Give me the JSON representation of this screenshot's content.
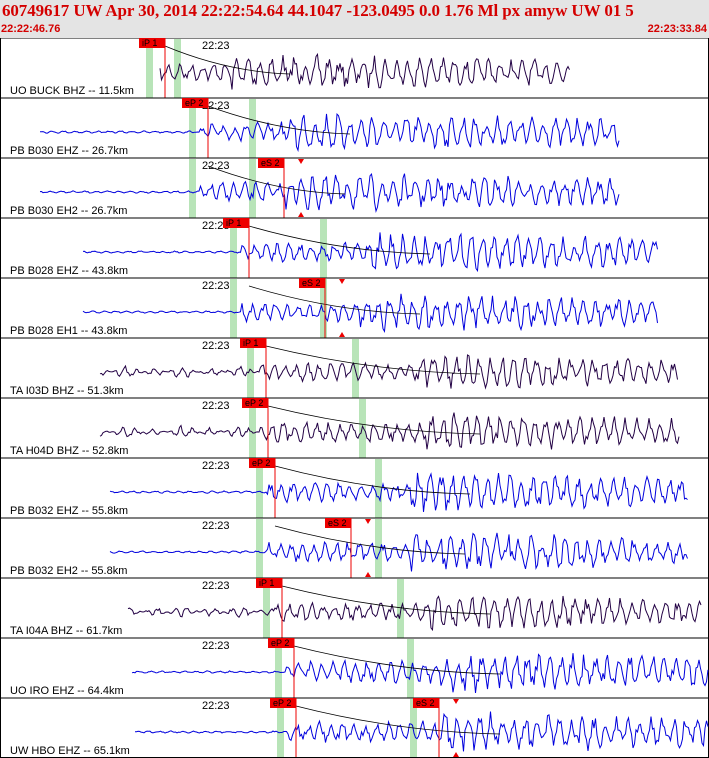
{
  "header": {
    "title": "60749617 UW Apr 30, 2014 22:22:54.64   44.1047 -123.0495  0.0 1.76 Ml px amyw UW 01   5",
    "start_time": "22:22:46.76",
    "end_time": "22:23:33.84"
  },
  "colors": {
    "header_text": "#d40000",
    "pick_red": "#ee0000",
    "window_green": "#b8e4b8",
    "trace_blue": "#0000dd",
    "trace_purple": "#220044"
  },
  "tick_label": "22:23",
  "traces": [
    {
      "label": "UO BUCK BHZ -- 11.5km",
      "color": "#220044",
      "p_label": "iP 1",
      "s_label": "",
      "onset": 160,
      "end": 570,
      "amp": 22,
      "s_time": 230,
      "green": [
        149,
        177
      ]
    },
    {
      "label": "PB B030 EHZ -- 26.7km",
      "color": "#0000dd",
      "p_label": "eP 2",
      "s_label": "",
      "onset": 40,
      "end": 620,
      "amp": 24,
      "s_time": 290,
      "green": [
        192,
        252
      ]
    },
    {
      "label": "PB B030 EH2 -- 26.7km",
      "color": "#0000dd",
      "p_label": "",
      "s_label": "eS 2",
      "onset": 40,
      "end": 620,
      "amp": 24,
      "s_time": 285,
      "green": [
        192,
        252
      ]
    },
    {
      "label": "PB B028 EHZ -- 43.8km",
      "color": "#0000dd",
      "p_label": "iP 1",
      "s_label": "",
      "onset": 83,
      "end": 658,
      "amp": 24,
      "s_time": 370,
      "green": [
        233,
        323
      ]
    },
    {
      "label": "PB B028 EH1 -- 43.8km",
      "color": "#0000dd",
      "p_label": "",
      "s_label": "eS 2",
      "onset": 83,
      "end": 658,
      "amp": 24,
      "s_time": 360,
      "green": [
        233,
        323
      ]
    },
    {
      "label": "TA I03D BHZ -- 51.3km",
      "color": "#220044",
      "p_label": "iP 1",
      "s_label": "",
      "onset": 100,
      "end": 678,
      "amp": 22,
      "s_time": 420,
      "green": [
        250,
        355
      ]
    },
    {
      "label": "TA H04D BHZ -- 52.8km",
      "color": "#220044",
      "p_label": "eP 2",
      "s_label": "",
      "onset": 100,
      "end": 680,
      "amp": 24,
      "s_time": 420,
      "green": [
        252,
        362
      ]
    },
    {
      "label": "PB B032 EHZ -- 55.8km",
      "color": "#0000dd",
      "p_label": "eP 2",
      "s_label": "",
      "onset": 110,
      "end": 688,
      "amp": 24,
      "s_time": 410,
      "green": [
        259,
        378
      ]
    },
    {
      "label": "PB B032 EH2 -- 55.8km",
      "color": "#0000dd",
      "p_label": "",
      "s_label": "eS 2",
      "onset": 110,
      "end": 688,
      "amp": 24,
      "s_time": 405,
      "green": [
        259,
        378
      ]
    },
    {
      "label": "TA I04A BHZ -- 61.7km",
      "color": "#220044",
      "p_label": "iP 1",
      "s_label": "",
      "onset": 128,
      "end": 702,
      "amp": 22,
      "s_time": 430,
      "green": [
        266,
        400
      ]
    },
    {
      "label": "UO IRO EHZ -- 64.4km",
      "color": "#0000dd",
      "p_label": "eP 2",
      "s_label": "",
      "onset": 132,
      "end": 709,
      "amp": 26,
      "s_time": 440,
      "green": [
        278,
        410
      ]
    },
    {
      "label": "UW HBO EHZ -- 65.1km",
      "color": "#0000dd",
      "p_label": "eP 2",
      "s_label": "eS 2",
      "onset": 135,
      "end": 709,
      "amp": 26,
      "s_time": 440,
      "green": [
        280,
        413
      ]
    }
  ]
}
